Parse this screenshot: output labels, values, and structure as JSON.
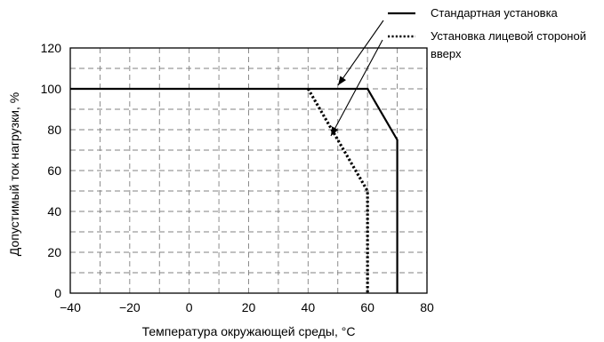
{
  "chart_data": {
    "type": "line",
    "title": "",
    "xlabel": "Температура окружающей среды, °C",
    "ylabel": "Допустимый ток нагрузки, %",
    "xlim": [
      -40,
      80
    ],
    "ylim": [
      0,
      120
    ],
    "xticks": [
      -40,
      -20,
      0,
      20,
      40,
      60,
      80
    ],
    "yticks": [
      0,
      20,
      40,
      60,
      80,
      100,
      120
    ],
    "xtick_labels": [
      "−40",
      "−20",
      "0",
      "20",
      "40",
      "60",
      "80"
    ],
    "ytick_labels": [
      "0",
      "20",
      "40",
      "60",
      "80",
      "100",
      "120"
    ],
    "grid": true,
    "grid_step_x": 10,
    "grid_step_y": 10,
    "legend_position": "top-right, outside plot",
    "series": [
      {
        "name": "Стандартная установка",
        "style": "solid",
        "color": "#000000",
        "x": [
          -40,
          60,
          70,
          70
        ],
        "y": [
          100,
          100,
          75,
          0
        ]
      },
      {
        "name": "Установка лицевой стороной вверх",
        "style": "dotted",
        "color": "#000000",
        "x": [
          40,
          60,
          60
        ],
        "y": [
          100,
          50,
          0
        ]
      }
    ]
  }
}
